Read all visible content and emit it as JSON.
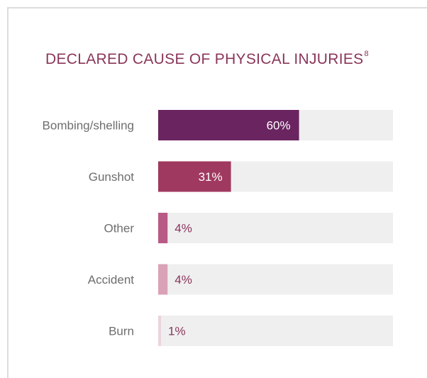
{
  "chart_data": {
    "type": "bar",
    "orientation": "horizontal",
    "title": "DECLARED CAUSE OF PHYSICAL INJURIES",
    "title_superscript": "8",
    "categories": [
      "Bombing/shelling",
      "Gunshot",
      "Other",
      "Accident",
      "Burn"
    ],
    "values": [
      60,
      31,
      4,
      4,
      1
    ],
    "value_labels": [
      "60%",
      "31%",
      "4%",
      "4%",
      "1%"
    ],
    "xlim": [
      0,
      100
    ],
    "grid": false,
    "legend": "none",
    "bar_colors": [
      "#6a2460",
      "#a0395f",
      "#b85a86",
      "#d9a2b7",
      "#ecd3de"
    ],
    "track_color": "#efeff0",
    "title_color": "#8a3559",
    "inside_label_color": "#ffffff",
    "outside_label_color": "#8a3559",
    "category_label_color": "#6d6d6d"
  }
}
